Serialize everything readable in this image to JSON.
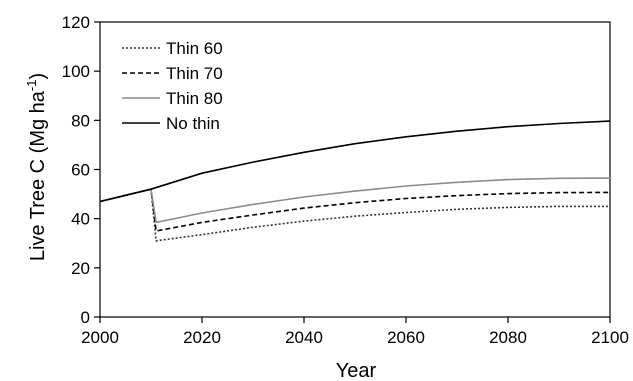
{
  "chart_data": {
    "type": "line",
    "xlabel": "Year",
    "ylabel": {
      "main": "Live Tree C (Mg ha",
      "superscript": "-1",
      "close": ")"
    },
    "xlim": [
      2000,
      2100
    ],
    "ylim": [
      0,
      120
    ],
    "xticks": [
      2000,
      2020,
      2040,
      2060,
      2080,
      2100
    ],
    "yticks": [
      0,
      20,
      40,
      60,
      80,
      100,
      120
    ],
    "grid": false,
    "legend_position": "top-left",
    "series": [
      {
        "name": "Thin 60",
        "style": "dotted",
        "color": "#333333",
        "points": [
          [
            2000,
            47
          ],
          [
            2010,
            52
          ],
          [
            2011,
            31
          ],
          [
            2020,
            33.5
          ],
          [
            2030,
            36.5
          ],
          [
            2040,
            39
          ],
          [
            2050,
            41
          ],
          [
            2060,
            42.5
          ],
          [
            2070,
            43.8
          ],
          [
            2080,
            44.6
          ],
          [
            2090,
            45
          ],
          [
            2100,
            45
          ]
        ]
      },
      {
        "name": "Thin 70",
        "style": "dashed",
        "color": "#000000",
        "points": [
          [
            2000,
            47
          ],
          [
            2010,
            52
          ],
          [
            2011,
            35
          ],
          [
            2020,
            38.5
          ],
          [
            2030,
            41.5
          ],
          [
            2040,
            44.3
          ],
          [
            2050,
            46.5
          ],
          [
            2060,
            48.2
          ],
          [
            2070,
            49.4
          ],
          [
            2080,
            50.2
          ],
          [
            2090,
            50.6
          ],
          [
            2100,
            50.7
          ]
        ]
      },
      {
        "name": "Thin 80",
        "style": "solid",
        "color": "#8c8c8c",
        "points": [
          [
            2000,
            47
          ],
          [
            2010,
            52
          ],
          [
            2011,
            38.5
          ],
          [
            2020,
            42.3
          ],
          [
            2030,
            45.8
          ],
          [
            2040,
            48.8
          ],
          [
            2050,
            51.2
          ],
          [
            2060,
            53.3
          ],
          [
            2070,
            54.8
          ],
          [
            2080,
            55.9
          ],
          [
            2090,
            56.4
          ],
          [
            2100,
            56.5
          ]
        ]
      },
      {
        "name": "No thin",
        "style": "solid",
        "color": "#000000",
        "points": [
          [
            2000,
            47
          ],
          [
            2010,
            52
          ],
          [
            2020,
            58.5
          ],
          [
            2030,
            63
          ],
          [
            2040,
            67
          ],
          [
            2050,
            70.5
          ],
          [
            2060,
            73.3
          ],
          [
            2070,
            75.6
          ],
          [
            2080,
            77.4
          ],
          [
            2090,
            78.7
          ],
          [
            2100,
            79.7
          ]
        ]
      }
    ]
  }
}
